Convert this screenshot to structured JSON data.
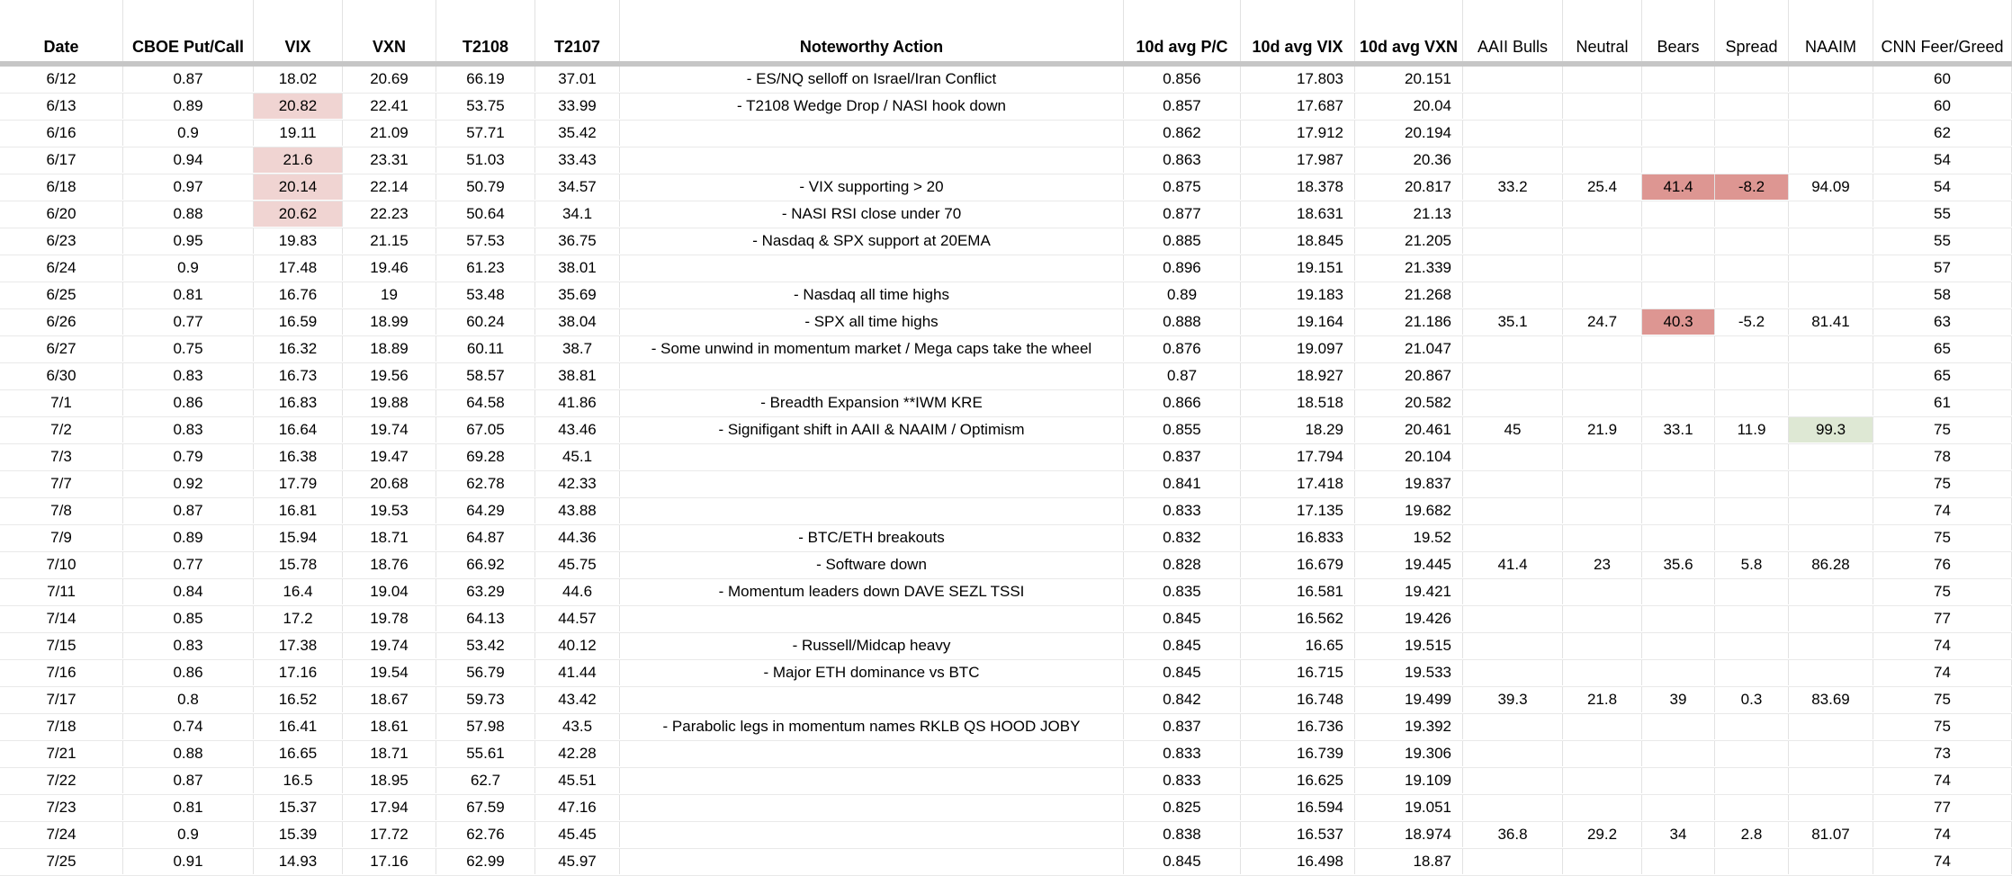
{
  "sheet": {
    "columns": [
      {
        "key": "date",
        "label": "Date"
      },
      {
        "key": "put-call",
        "label": "CBOE Put/Call"
      },
      {
        "key": "vix",
        "label": "VIX"
      },
      {
        "key": "vxn",
        "label": "VXN"
      },
      {
        "key": "t2108",
        "label": "T2108"
      },
      {
        "key": "t2107",
        "label": "T2107"
      },
      {
        "key": "noteworthy-action",
        "label": "Noteworthy Action"
      },
      {
        "key": "10d-avg-pc",
        "label": "10d avg P/C"
      },
      {
        "key": "10d-avg-vix",
        "label": "10d avg VIX"
      },
      {
        "key": "10d-avg-vxn",
        "label": "10d avg VXN"
      },
      {
        "key": "aaii-bulls",
        "label": "AAII Bulls"
      },
      {
        "key": "neutral",
        "label": "Neutral"
      },
      {
        "key": "bears",
        "label": "Bears"
      },
      {
        "key": "spread",
        "label": "Spread"
      },
      {
        "key": "naaim",
        "label": "NAAIM"
      },
      {
        "key": "cnn-feer-greed",
        "label": "CNN Feer/Greed"
      }
    ],
    "rows": [
      [
        "6/12",
        "0.87",
        "18.02",
        "20.69",
        "66.19",
        "37.01",
        "- ES/NQ selloff on Israel/Iran Conflict",
        "0.856",
        "17.803",
        "20.151",
        "",
        "",
        "",
        "",
        "",
        "60"
      ],
      [
        "6/13",
        "0.89",
        "20.82",
        "22.41",
        "53.75",
        "33.99",
        "- T2108 Wedge Drop / NASI hook down",
        "0.857",
        "17.687",
        "20.04",
        "",
        "",
        "",
        "",
        "",
        "60"
      ],
      [
        "6/16",
        "0.9",
        "19.11",
        "21.09",
        "57.71",
        "35.42",
        "",
        "0.862",
        "17.912",
        "20.194",
        "",
        "",
        "",
        "",
        "",
        "62"
      ],
      [
        "6/17",
        "0.94",
        "21.6",
        "23.31",
        "51.03",
        "33.43",
        "",
        "0.863",
        "17.987",
        "20.36",
        "",
        "",
        "",
        "",
        "",
        "54"
      ],
      [
        "6/18",
        "0.97",
        "20.14",
        "22.14",
        "50.79",
        "34.57",
        "- VIX supporting > 20",
        "0.875",
        "18.378",
        "20.817",
        "33.2",
        "25.4",
        "41.4",
        "-8.2",
        "94.09",
        "54"
      ],
      [
        "6/20",
        "0.88",
        "20.62",
        "22.23",
        "50.64",
        "34.1",
        "- NASI RSI close under 70",
        "0.877",
        "18.631",
        "21.13",
        "",
        "",
        "",
        "",
        "",
        "55"
      ],
      [
        "6/23",
        "0.95",
        "19.83",
        "21.15",
        "57.53",
        "36.75",
        "- Nasdaq & SPX support at 20EMA",
        "0.885",
        "18.845",
        "21.205",
        "",
        "",
        "",
        "",
        "",
        "55"
      ],
      [
        "6/24",
        "0.9",
        "17.48",
        "19.46",
        "61.23",
        "38.01",
        "",
        "0.896",
        "19.151",
        "21.339",
        "",
        "",
        "",
        "",
        "",
        "57"
      ],
      [
        "6/25",
        "0.81",
        "16.76",
        "19",
        "53.48",
        "35.69",
        "- Nasdaq all time highs",
        "0.89",
        "19.183",
        "21.268",
        "",
        "",
        "",
        "",
        "",
        "58"
      ],
      [
        "6/26",
        "0.77",
        "16.59",
        "18.99",
        "60.24",
        "38.04",
        "- SPX all time highs",
        "0.888",
        "19.164",
        "21.186",
        "35.1",
        "24.7",
        "40.3",
        "-5.2",
        "81.41",
        "63"
      ],
      [
        "6/27",
        "0.75",
        "16.32",
        "18.89",
        "60.11",
        "38.7",
        "- Some unwind in momentum market / Mega caps take the wheel",
        "0.876",
        "19.097",
        "21.047",
        "",
        "",
        "",
        "",
        "",
        "65"
      ],
      [
        "6/30",
        "0.83",
        "16.73",
        "19.56",
        "58.57",
        "38.81",
        "",
        "0.87",
        "18.927",
        "20.867",
        "",
        "",
        "",
        "",
        "",
        "65"
      ],
      [
        "7/1",
        "0.86",
        "16.83",
        "19.88",
        "64.58",
        "41.86",
        "- Breadth Expansion **IWM KRE",
        "0.866",
        "18.518",
        "20.582",
        "",
        "",
        "",
        "",
        "",
        "61"
      ],
      [
        "7/2",
        "0.83",
        "16.64",
        "19.74",
        "67.05",
        "43.46",
        "- Signifigant shift in AAII & NAAIM / Optimism",
        "0.855",
        "18.29",
        "20.461",
        "45",
        "21.9",
        "33.1",
        "11.9",
        "99.3",
        "75"
      ],
      [
        "7/3",
        "0.79",
        "16.38",
        "19.47",
        "69.28",
        "45.1",
        "",
        "0.837",
        "17.794",
        "20.104",
        "",
        "",
        "",
        "",
        "",
        "78"
      ],
      [
        "7/7",
        "0.92",
        "17.79",
        "20.68",
        "62.78",
        "42.33",
        "",
        "0.841",
        "17.418",
        "19.837",
        "",
        "",
        "",
        "",
        "",
        "75"
      ],
      [
        "7/8",
        "0.87",
        "16.81",
        "19.53",
        "64.29",
        "43.88",
        "",
        "0.833",
        "17.135",
        "19.682",
        "",
        "",
        "",
        "",
        "",
        "74"
      ],
      [
        "7/9",
        "0.89",
        "15.94",
        "18.71",
        "64.87",
        "44.36",
        "- BTC/ETH breakouts",
        "0.832",
        "16.833",
        "19.52",
        "",
        "",
        "",
        "",
        "",
        "75"
      ],
      [
        "7/10",
        "0.77",
        "15.78",
        "18.76",
        "66.92",
        "45.75",
        "- Software down",
        "0.828",
        "16.679",
        "19.445",
        "41.4",
        "23",
        "35.6",
        "5.8",
        "86.28",
        "76"
      ],
      [
        "7/11",
        "0.84",
        "16.4",
        "19.04",
        "63.29",
        "44.6",
        "- Momentum leaders down DAVE SEZL TSSI",
        "0.835",
        "16.581",
        "19.421",
        "",
        "",
        "",
        "",
        "",
        "75"
      ],
      [
        "7/14",
        "0.85",
        "17.2",
        "19.78",
        "64.13",
        "44.57",
        "",
        "0.845",
        "16.562",
        "19.426",
        "",
        "",
        "",
        "",
        "",
        "77"
      ],
      [
        "7/15",
        "0.83",
        "17.38",
        "19.74",
        "53.42",
        "40.12",
        "- Russell/Midcap heavy",
        "0.845",
        "16.65",
        "19.515",
        "",
        "",
        "",
        "",
        "",
        "74"
      ],
      [
        "7/16",
        "0.86",
        "17.16",
        "19.54",
        "56.79",
        "41.44",
        "- Major ETH dominance vs BTC",
        "0.845",
        "16.715",
        "19.533",
        "",
        "",
        "",
        "",
        "",
        "74"
      ],
      [
        "7/17",
        "0.8",
        "16.52",
        "18.67",
        "59.73",
        "43.42",
        "",
        "0.842",
        "16.748",
        "19.499",
        "39.3",
        "21.8",
        "39",
        "0.3",
        "83.69",
        "75"
      ],
      [
        "7/18",
        "0.74",
        "16.41",
        "18.61",
        "57.98",
        "43.5",
        "- Parabolic legs in momentum names RKLB QS HOOD JOBY",
        "0.837",
        "16.736",
        "19.392",
        "",
        "",
        "",
        "",
        "",
        "75"
      ],
      [
        "7/21",
        "0.88",
        "16.65",
        "18.71",
        "55.61",
        "42.28",
        "",
        "0.833",
        "16.739",
        "19.306",
        "",
        "",
        "",
        "",
        "",
        "73"
      ],
      [
        "7/22",
        "0.87",
        "16.5",
        "18.95",
        "62.7",
        "45.51",
        "",
        "0.833",
        "16.625",
        "19.109",
        "",
        "",
        "",
        "",
        "",
        "74"
      ],
      [
        "7/23",
        "0.81",
        "15.37",
        "17.94",
        "67.59",
        "47.16",
        "",
        "0.825",
        "16.594",
        "19.051",
        "",
        "",
        "",
        "",
        "",
        "77"
      ],
      [
        "7/24",
        "0.9",
        "15.39",
        "17.72",
        "62.76",
        "45.45",
        "",
        "0.838",
        "16.537",
        "18.974",
        "36.8",
        "29.2",
        "34",
        "2.8",
        "81.07",
        "74"
      ],
      [
        "7/25",
        "0.91",
        "14.93",
        "17.16",
        "62.99",
        "45.97",
        "",
        "0.845",
        "16.498",
        "18.87",
        "",
        "",
        "",
        "",
        "",
        "74"
      ]
    ],
    "highlights": [
      {
        "row": 1,
        "col": 2,
        "color": "pink"
      },
      {
        "row": 3,
        "col": 2,
        "color": "pink"
      },
      {
        "row": 4,
        "col": 2,
        "color": "pink"
      },
      {
        "row": 5,
        "col": 2,
        "color": "pink"
      },
      {
        "row": 4,
        "col": 12,
        "color": "red"
      },
      {
        "row": 4,
        "col": 13,
        "color": "red"
      },
      {
        "row": 9,
        "col": 12,
        "color": "red"
      },
      {
        "row": 13,
        "col": 14,
        "color": "green"
      }
    ],
    "colors": {
      "pink": "#f0d4d2",
      "red": "#dd9692",
      "green": "#dee8d4",
      "gridline": "#e2e2e2",
      "frozen_divider": "#c6c6c6"
    }
  }
}
